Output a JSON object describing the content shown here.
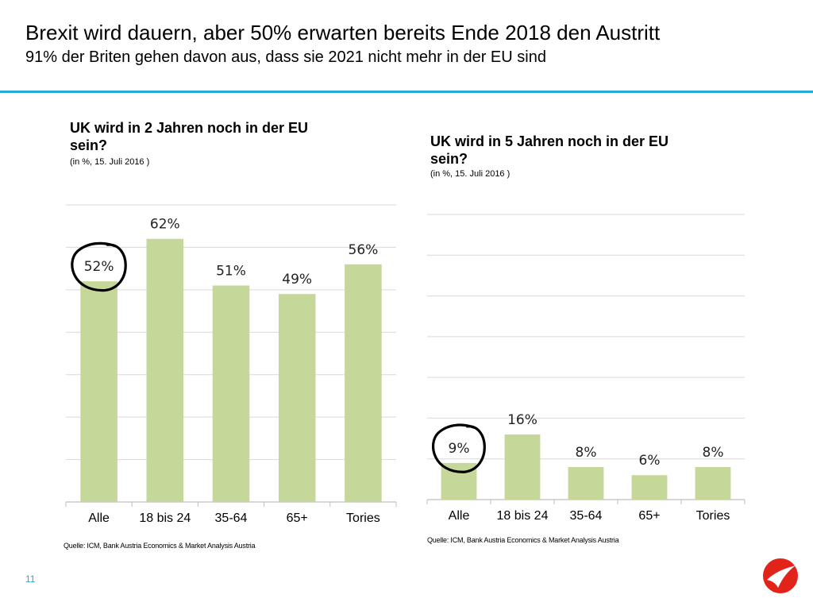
{
  "header": {
    "title": "Brexit wird dauern, aber 50% erwarten bereits Ende 2018 den Austritt",
    "subtitle": "91% der Briten gehen davon aus, dass sie 2021 nicht mehr in der EU sind"
  },
  "chart_data": [
    {
      "type": "bar",
      "title": "UK wird in 2 Jahren noch in der EU sein?",
      "note": "(in %, 15. Juli 2016 )",
      "categories": [
        "Alle",
        "18 bis 24",
        "35-64",
        "65+",
        "Tories"
      ],
      "values": [
        52,
        62,
        51,
        49,
        56
      ],
      "value_labels": [
        "52%",
        "62%",
        "51%",
        "49%",
        "56%"
      ],
      "ylim": [
        0,
        70
      ],
      "gridlines": true,
      "highlight_index": 0,
      "source": "Quelle: ICM, Bank Austria Economics & Market Analysis Austria",
      "bar_color": "#c5d89a"
    },
    {
      "type": "bar",
      "title": "UK wird in 5 Jahren noch in der EU sein?",
      "note": "(in %, 15. Juli 2016 )",
      "categories": [
        "Alle",
        "18 bis 24",
        "35-64",
        "65+",
        "Tories"
      ],
      "values": [
        9,
        16,
        8,
        6,
        8
      ],
      "value_labels": [
        "9%",
        "16%",
        "8%",
        "6%",
        "8%"
      ],
      "ylim": [
        0,
        70
      ],
      "gridlines": true,
      "highlight_index": 0,
      "source": "Quelle: ICM, Bank Austria Economics & Market Analysis Austria",
      "bar_color": "#c5d89a"
    }
  ],
  "footer": {
    "page_number": "11"
  },
  "colors": {
    "accent": "#29a9d8",
    "logo": "#e2231a",
    "gridline": "#d9d9d9",
    "highlight": "#000000"
  }
}
